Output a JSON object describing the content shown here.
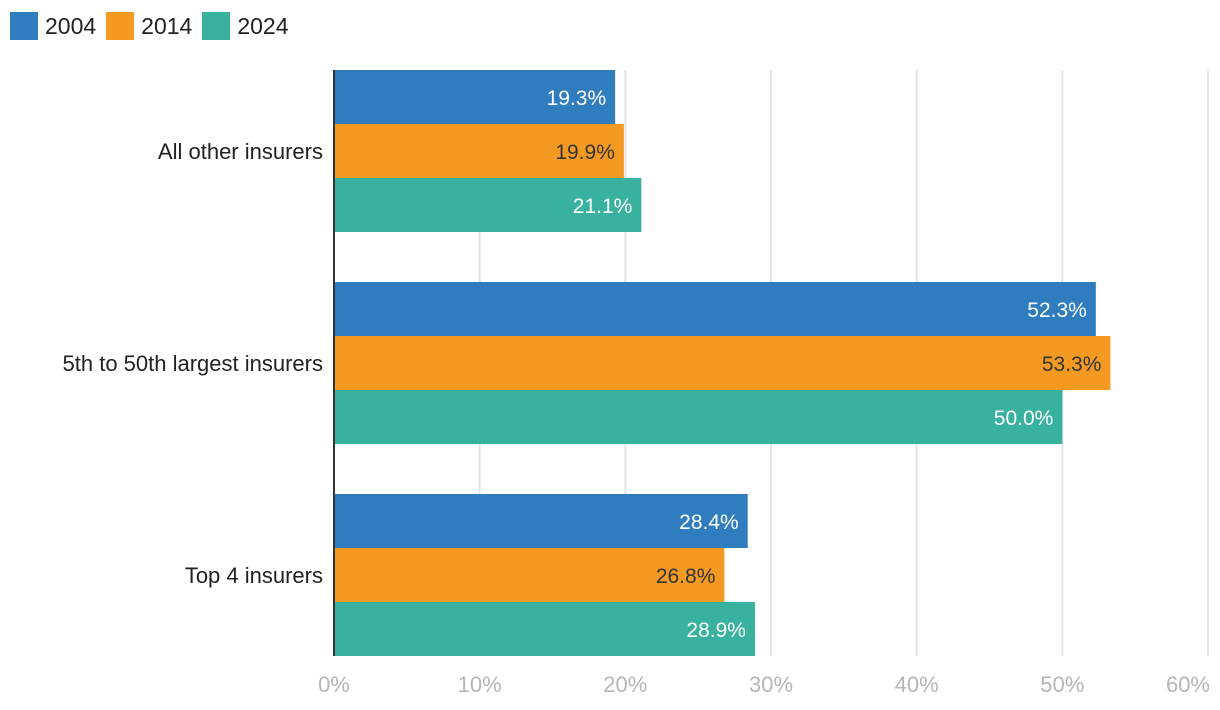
{
  "chart_data": {
    "type": "bar",
    "orientation": "horizontal",
    "categories": [
      "All other insurers",
      "5th to 50th largest insurers",
      "Top 4 insurers"
    ],
    "series": [
      {
        "name": "2004",
        "values": [
          19.3,
          52.3,
          28.4
        ],
        "labels": [
          "19.3%",
          "52.3%",
          "28.4%"
        ],
        "color": "#2f7dbf",
        "label_color": "#ffffff"
      },
      {
        "name": "2014",
        "values": [
          19.9,
          53.3,
          26.8
        ],
        "labels": [
          "19.9%",
          "53.3%",
          "26.8%"
        ],
        "color": "#f49a23",
        "label_color": "#333333"
      },
      {
        "name": "2024",
        "values": [
          21.1,
          50.0,
          28.9
        ],
        "labels": [
          "21.1%",
          "50.0%",
          "28.9%"
        ],
        "color": "#38b29e",
        "label_color": "#ffffff"
      }
    ],
    "x_ticks": [
      "0%",
      "10%",
      "20%",
      "30%",
      "40%",
      "50%",
      "60%"
    ],
    "xlim": [
      0,
      60
    ],
    "grid": true,
    "legend_position": "top-left",
    "title": "",
    "xlabel": "",
    "ylabel": ""
  }
}
